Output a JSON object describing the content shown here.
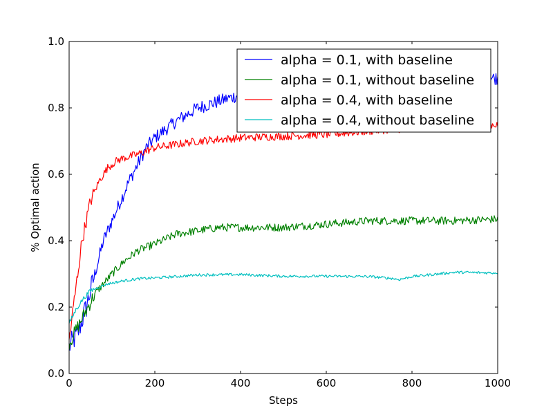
{
  "chart_data": {
    "type": "line",
    "title": "",
    "xlabel": "Steps",
    "ylabel": "% Optimal action",
    "xlim": [
      0,
      1000
    ],
    "ylim": [
      0.0,
      1.0
    ],
    "x_ticks": [
      0,
      200,
      400,
      600,
      800,
      1000
    ],
    "x_tick_labels": [
      "0",
      "200",
      "400",
      "600",
      "800",
      "1000"
    ],
    "y_ticks": [
      0.0,
      0.2,
      0.4,
      0.6,
      0.8,
      1.0
    ],
    "y_tick_labels": [
      "0.0",
      "0.2",
      "0.4",
      "0.6",
      "0.8",
      "1.0"
    ],
    "grid": false,
    "legend_position": "top-right",
    "series": [
      {
        "name": "alpha = 0.1, with baseline",
        "color": "#0000ff",
        "x": [
          0,
          20,
          40,
          60,
          80,
          100,
          120,
          140,
          160,
          180,
          200,
          250,
          300,
          350,
          400,
          500,
          600,
          700,
          800,
          900,
          1000
        ],
        "values": [
          0.08,
          0.12,
          0.2,
          0.3,
          0.4,
          0.46,
          0.52,
          0.58,
          0.63,
          0.68,
          0.71,
          0.76,
          0.8,
          0.82,
          0.84,
          0.86,
          0.87,
          0.88,
          0.88,
          0.89,
          0.89
        ],
        "noise": 0.02
      },
      {
        "name": "alpha = 0.1, without baseline",
        "color": "#008000",
        "x": [
          0,
          20,
          40,
          60,
          80,
          100,
          130,
          160,
          200,
          250,
          300,
          350,
          400,
          500,
          600,
          700,
          800,
          900,
          1000
        ],
        "values": [
          0.09,
          0.14,
          0.19,
          0.24,
          0.27,
          0.3,
          0.34,
          0.37,
          0.39,
          0.42,
          0.43,
          0.44,
          0.44,
          0.44,
          0.45,
          0.46,
          0.46,
          0.46,
          0.465
        ],
        "noise": 0.012
      },
      {
        "name": "alpha = 0.4, with baseline",
        "color": "#ff0000",
        "x": [
          0,
          15,
          30,
          50,
          70,
          90,
          110,
          130,
          160,
          200,
          250,
          300,
          400,
          500,
          600,
          700,
          800,
          900,
          1000
        ],
        "values": [
          0.1,
          0.25,
          0.4,
          0.52,
          0.58,
          0.62,
          0.64,
          0.65,
          0.66,
          0.68,
          0.69,
          0.7,
          0.71,
          0.715,
          0.72,
          0.73,
          0.74,
          0.745,
          0.75
        ],
        "noise": 0.012
      },
      {
        "name": "alpha = 0.4, without baseline",
        "color": "#00bfbf",
        "x": [
          0,
          15,
          30,
          50,
          70,
          90,
          110,
          130,
          160,
          200,
          250,
          300,
          400,
          500,
          600,
          700,
          750,
          770,
          800,
          900,
          1000
        ],
        "values": [
          0.15,
          0.19,
          0.22,
          0.25,
          0.26,
          0.27,
          0.275,
          0.28,
          0.285,
          0.288,
          0.292,
          0.297,
          0.298,
          0.293,
          0.293,
          0.292,
          0.287,
          0.283,
          0.292,
          0.305,
          0.303
        ],
        "noise": 0.004
      }
    ]
  }
}
